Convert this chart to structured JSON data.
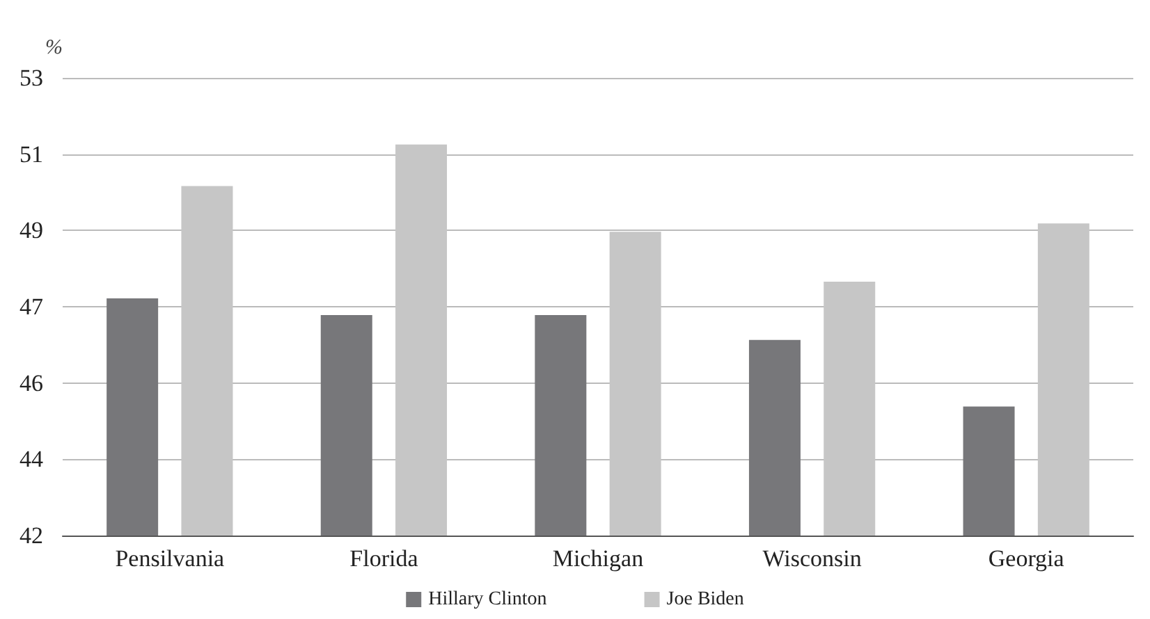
{
  "chart_data": {
    "type": "bar",
    "ylabel": "%",
    "categories": [
      "Pensilvania",
      "Florida",
      "Michigan",
      "Wisconsin",
      "Georgia"
    ],
    "series": [
      {
        "name": "Hillary Clinton",
        "color": "#77777a",
        "values": [
          47.7,
          47.3,
          47.3,
          46.7,
          45.1
        ]
      },
      {
        "name": "Joe Biden",
        "color": "#c6c6c6",
        "values": [
          50.4,
          51.4,
          49.3,
          48.1,
          49.5
        ]
      }
    ],
    "ylim": [
      42,
      53
    ],
    "yticks": [
      {
        "value": 42,
        "label": "42"
      },
      {
        "value": 43.833,
        "label": "44"
      },
      {
        "value": 45.667,
        "label": "46"
      },
      {
        "value": 47.5,
        "label": "47"
      },
      {
        "value": 49.333,
        "label": "49"
      },
      {
        "value": 51.167,
        "label": "51"
      },
      {
        "value": 53,
        "label": "53"
      }
    ],
    "grid": "y",
    "legend": "bottom"
  }
}
